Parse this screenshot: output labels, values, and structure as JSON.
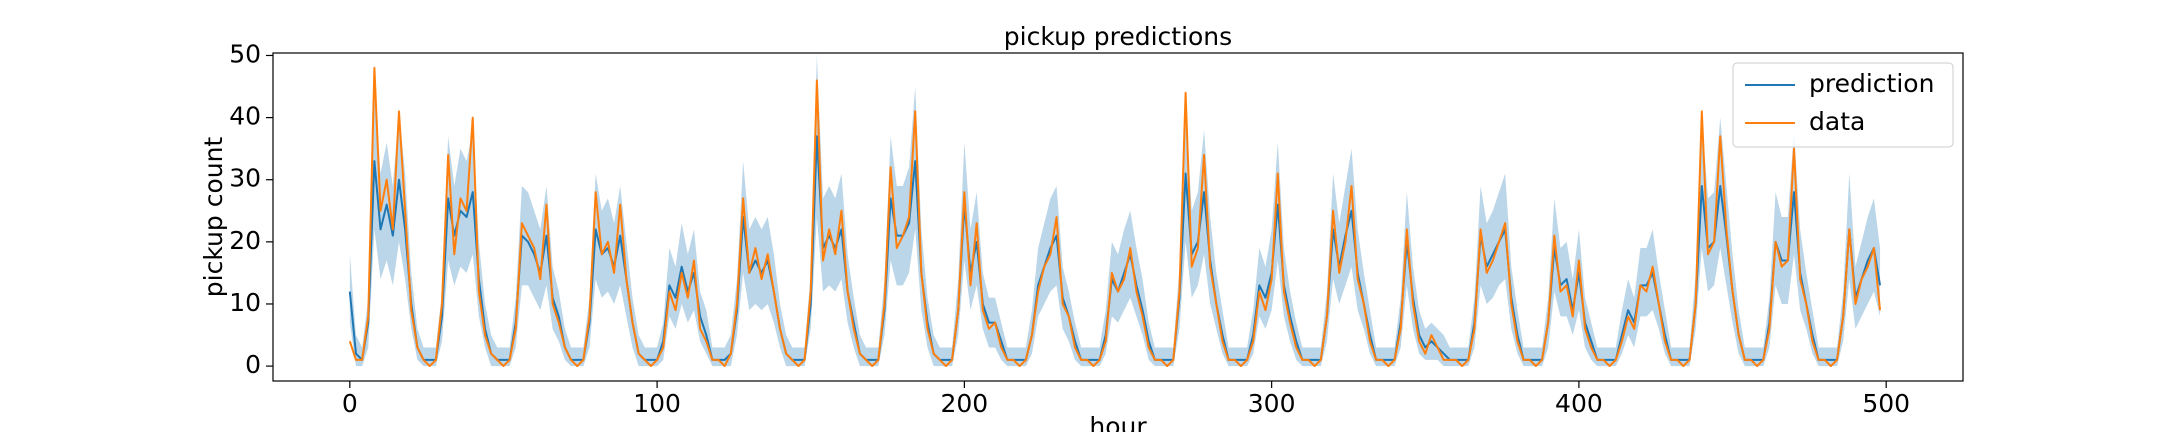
{
  "chart_data": {
    "type": "line",
    "title": "pickup predictions",
    "x_label": "hour",
    "y_label": "pickup count",
    "xlim": [
      -25,
      525
    ],
    "ylim": [
      -2.4,
      50.4
    ],
    "xticks": [
      0,
      100,
      200,
      300,
      400,
      500
    ],
    "yticks": [
      0,
      10,
      20,
      30,
      40,
      50
    ],
    "legend": "upper right",
    "x": [
      0,
      2,
      4,
      6,
      8,
      10,
      12,
      14,
      16,
      18,
      20,
      22,
      24,
      26,
      28,
      30,
      32,
      34,
      36,
      38,
      40,
      42,
      44,
      46,
      48,
      50,
      52,
      54,
      56,
      58,
      60,
      62,
      64,
      66,
      68,
      70,
      72,
      74,
      76,
      78,
      80,
      82,
      84,
      86,
      88,
      90,
      92,
      94,
      96,
      98,
      100,
      102,
      104,
      106,
      108,
      110,
      112,
      114,
      116,
      118,
      120,
      122,
      124,
      126,
      128,
      130,
      132,
      134,
      136,
      138,
      140,
      142,
      144,
      146,
      148,
      150,
      152,
      154,
      156,
      158,
      160,
      162,
      164,
      166,
      168,
      170,
      172,
      174,
      176,
      178,
      180,
      182,
      184,
      186,
      188,
      190,
      192,
      194,
      196,
      198,
      200,
      202,
      204,
      206,
      208,
      210,
      212,
      214,
      216,
      218,
      220,
      222,
      224,
      226,
      228,
      230,
      232,
      234,
      236,
      238,
      240,
      242,
      244,
      246,
      248,
      250,
      252,
      254,
      256,
      258,
      260,
      262,
      264,
      266,
      268,
      270,
      272,
      274,
      276,
      278,
      280,
      282,
      284,
      286,
      288,
      290,
      292,
      294,
      296,
      298,
      300,
      302,
      304,
      306,
      308,
      310,
      312,
      314,
      316,
      318,
      320,
      322,
      324,
      326,
      328,
      330,
      332,
      334,
      336,
      338,
      340,
      342,
      344,
      346,
      348,
      350,
      352,
      354,
      356,
      358,
      360,
      362,
      364,
      366,
      368,
      370,
      372,
      374,
      376,
      378,
      380,
      382,
      384,
      386,
      388,
      390,
      392,
      394,
      396,
      398,
      400,
      402,
      404,
      406,
      408,
      410,
      412,
      414,
      416,
      418,
      420,
      422,
      424,
      426,
      428,
      430,
      432,
      434,
      436,
      438,
      440,
      442,
      444,
      446,
      448,
      450,
      452,
      454,
      456,
      458,
      460,
      462,
      464,
      466,
      468,
      470,
      472,
      474,
      476,
      478,
      480,
      482,
      484,
      486,
      488,
      490,
      492,
      494,
      496,
      498
    ],
    "band": {
      "color": "#1f77b4",
      "lower": [
        7,
        0,
        0,
        3,
        22,
        14,
        17,
        13,
        20,
        14,
        6,
        1,
        0,
        0,
        0,
        4,
        17,
        13,
        16,
        15,
        18,
        8,
        3,
        0,
        0,
        0,
        0,
        3,
        13,
        13,
        11,
        9,
        13,
        6,
        4,
        1,
        0,
        0,
        0,
        3,
        14,
        11,
        12,
        10,
        13,
        8,
        3,
        0,
        0,
        0,
        0,
        1,
        8,
        6,
        10,
        7,
        9,
        4,
        2,
        0,
        0,
        0,
        0,
        5,
        15,
        9,
        10,
        9,
        10,
        7,
        3,
        0,
        0,
        0,
        0,
        6,
        24,
        12,
        13,
        12,
        14,
        7,
        3,
        0,
        0,
        0,
        0,
        5,
        17,
        13,
        13,
        15,
        22,
        9,
        3,
        0,
        0,
        0,
        0,
        5,
        17,
        9,
        13,
        6,
        3,
        3,
        1,
        0,
        0,
        0,
        0,
        2,
        8,
        10,
        12,
        13,
        6,
        4,
        1,
        0,
        0,
        0,
        0,
        2,
        8,
        7,
        9,
        11,
        8,
        5,
        1,
        0,
        0,
        0,
        0,
        6,
        20,
        11,
        13,
        18,
        10,
        6,
        2,
        0,
        0,
        0,
        0,
        2,
        8,
        6,
        9,
        17,
        8,
        4,
        1,
        0,
        0,
        0,
        0,
        4,
        14,
        10,
        13,
        16,
        9,
        6,
        2,
        0,
        0,
        0,
        0,
        3,
        13,
        6,
        2,
        1,
        1,
        1,
        0,
        0,
        0,
        0,
        0,
        3,
        13,
        10,
        11,
        13,
        14,
        6,
        2,
        0,
        0,
        0,
        0,
        3,
        12,
        8,
        8,
        5,
        9,
        3,
        1,
        0,
        0,
        0,
        0,
        2,
        5,
        3,
        8,
        8,
        9,
        6,
        2,
        0,
        0,
        0,
        0,
        6,
        19,
        12,
        13,
        19,
        13,
        7,
        2,
        0,
        0,
        0,
        0,
        3,
        13,
        10,
        10,
        18,
        9,
        6,
        2,
        0,
        0,
        0,
        0,
        4,
        14,
        6,
        8,
        10,
        12,
        8
      ],
      "upper": [
        18,
        5,
        3,
        11,
        45,
        31,
        36,
        29,
        41,
        31,
        15,
        6,
        3,
        3,
        3,
        12,
        37,
        29,
        35,
        33,
        38,
        20,
        10,
        5,
        3,
        3,
        3,
        11,
        29,
        28,
        25,
        22,
        29,
        16,
        12,
        6,
        3,
        3,
        3,
        11,
        31,
        25,
        27,
        23,
        29,
        20,
        11,
        5,
        3,
        3,
        3,
        7,
        19,
        16,
        23,
        18,
        22,
        12,
        9,
        3,
        3,
        3,
        5,
        14,
        33,
        22,
        24,
        22,
        24,
        18,
        10,
        5,
        3,
        3,
        3,
        15,
        50,
        27,
        29,
        27,
        31,
        18,
        11,
        5,
        3,
        3,
        3,
        14,
        37,
        29,
        29,
        32,
        45,
        22,
        11,
        5,
        3,
        3,
        3,
        14,
        36,
        22,
        28,
        15,
        11,
        11,
        7,
        3,
        3,
        3,
        3,
        9,
        19,
        23,
        27,
        29,
        16,
        12,
        7,
        3,
        3,
        3,
        3,
        9,
        20,
        18,
        22,
        25,
        19,
        14,
        7,
        3,
        3,
        3,
        3,
        16,
        42,
        25,
        28,
        38,
        24,
        15,
        9,
        3,
        3,
        3,
        3,
        9,
        19,
        16,
        22,
        36,
        19,
        12,
        7,
        3,
        3,
        3,
        3,
        12,
        31,
        23,
        29,
        35,
        22,
        15,
        9,
        3,
        3,
        3,
        3,
        11,
        28,
        16,
        9,
        6,
        7,
        6,
        5,
        3,
        3,
        3,
        3,
        11,
        29,
        23,
        25,
        28,
        31,
        16,
        9,
        3,
        3,
        3,
        3,
        11,
        27,
        19,
        20,
        14,
        22,
        11,
        7,
        3,
        3,
        3,
        3,
        9,
        14,
        11,
        19,
        19,
        22,
        15,
        9,
        3,
        3,
        3,
        3,
        15,
        40,
        27,
        28,
        40,
        29,
        18,
        9,
        3,
        3,
        3,
        3,
        11,
        28,
        24,
        24,
        38,
        22,
        15,
        9,
        3,
        3,
        3,
        3,
        12,
        31,
        16,
        20,
        24,
        27,
        19
      ]
    },
    "series": [
      {
        "name": "prediction",
        "color": "#1f77b4",
        "values": [
          12,
          2,
          1,
          7,
          33,
          22,
          26,
          21,
          30,
          22,
          10,
          3,
          1,
          1,
          1,
          8,
          27,
          21,
          25,
          24,
          28,
          14,
          6,
          2,
          1,
          1,
          1,
          7,
          21,
          20,
          18,
          15,
          21,
          11,
          8,
          3,
          1,
          1,
          1,
          7,
          22,
          18,
          19,
          16,
          21,
          14,
          7,
          2,
          1,
          1,
          1,
          4,
          13,
          11,
          16,
          12,
          15,
          8,
          5,
          1,
          1,
          1,
          2,
          9,
          24,
          15,
          17,
          15,
          17,
          12,
          6,
          2,
          1,
          1,
          1,
          10,
          37,
          19,
          21,
          19,
          22,
          12,
          7,
          2,
          1,
          1,
          1,
          9,
          27,
          21,
          21,
          23,
          33,
          15,
          7,
          2,
          1,
          1,
          1,
          9,
          26,
          15,
          20,
          10,
          7,
          7,
          4,
          1,
          1,
          1,
          1,
          5,
          13,
          16,
          19,
          21,
          11,
          8,
          4,
          1,
          1,
          1,
          1,
          5,
          14,
          12,
          15,
          18,
          13,
          9,
          4,
          1,
          1,
          1,
          1,
          11,
          31,
          18,
          20,
          28,
          17,
          10,
          5,
          1,
          1,
          1,
          1,
          5,
          13,
          11,
          15,
          26,
          13,
          8,
          4,
          1,
          1,
          1,
          1,
          8,
          22,
          16,
          21,
          25,
          15,
          10,
          5,
          1,
          1,
          1,
          1,
          7,
          20,
          11,
          5,
          3,
          4,
          3,
          2,
          1,
          1,
          1,
          1,
          7,
          21,
          16,
          18,
          20,
          22,
          11,
          5,
          1,
          1,
          1,
          1,
          7,
          19,
          13,
          14,
          9,
          15,
          7,
          4,
          1,
          1,
          1,
          1,
          5,
          9,
          7,
          13,
          13,
          15,
          10,
          5,
          1,
          1,
          1,
          1,
          10,
          29,
          19,
          20,
          29,
          21,
          12,
          5,
          1,
          1,
          1,
          1,
          7,
          20,
          17,
          17,
          28,
          15,
          10,
          5,
          1,
          1,
          1,
          1,
          8,
          22,
          11,
          14,
          17,
          19,
          13
        ]
      },
      {
        "name": "data",
        "color": "#ff7f0e",
        "values": [
          4,
          1,
          1,
          8,
          48,
          25,
          30,
          22,
          41,
          25,
          9,
          3,
          1,
          0,
          1,
          10,
          34,
          18,
          27,
          25,
          40,
          12,
          5,
          2,
          1,
          0,
          1,
          6,
          23,
          21,
          19,
          14,
          26,
          10,
          7,
          3,
          1,
          0,
          1,
          8,
          28,
          18,
          20,
          15,
          26,
          14,
          7,
          2,
          1,
          0,
          1,
          3,
          12,
          9,
          15,
          11,
          17,
          6,
          4,
          1,
          1,
          0,
          2,
          10,
          27,
          15,
          19,
          14,
          18,
          12,
          6,
          2,
          1,
          0,
          1,
          12,
          46,
          17,
          22,
          18,
          25,
          12,
          6,
          2,
          1,
          0,
          1,
          10,
          32,
          19,
          21,
          24,
          41,
          15,
          6,
          2,
          1,
          0,
          1,
          9,
          28,
          13,
          23,
          9,
          6,
          7,
          3,
          1,
          1,
          0,
          1,
          5,
          12,
          16,
          18,
          24,
          10,
          8,
          3,
          1,
          1,
          0,
          1,
          4,
          15,
          12,
          14,
          19,
          12,
          8,
          3,
          1,
          1,
          0,
          1,
          12,
          44,
          16,
          19,
          34,
          16,
          10,
          4,
          1,
          1,
          0,
          1,
          4,
          12,
          9,
          14,
          31,
          12,
          7,
          3,
          1,
          1,
          0,
          1,
          8,
          25,
          15,
          20,
          29,
          14,
          10,
          4,
          1,
          1,
          0,
          1,
          6,
          22,
          10,
          4,
          2,
          5,
          3,
          1,
          1,
          1,
          0,
          1,
          6,
          22,
          15,
          17,
          20,
          23,
          10,
          4,
          1,
          1,
          0,
          1,
          7,
          21,
          12,
          13,
          8,
          17,
          6,
          3,
          1,
          1,
          0,
          1,
          4,
          8,
          6,
          13,
          12,
          16,
          10,
          4,
          1,
          1,
          0,
          1,
          10,
          41,
          18,
          20,
          37,
          22,
          12,
          5,
          1,
          1,
          0,
          1,
          6,
          20,
          16,
          17,
          35,
          14,
          10,
          4,
          1,
          1,
          0,
          1,
          8,
          22,
          10,
          14,
          16,
          19,
          9
        ]
      }
    ]
  }
}
